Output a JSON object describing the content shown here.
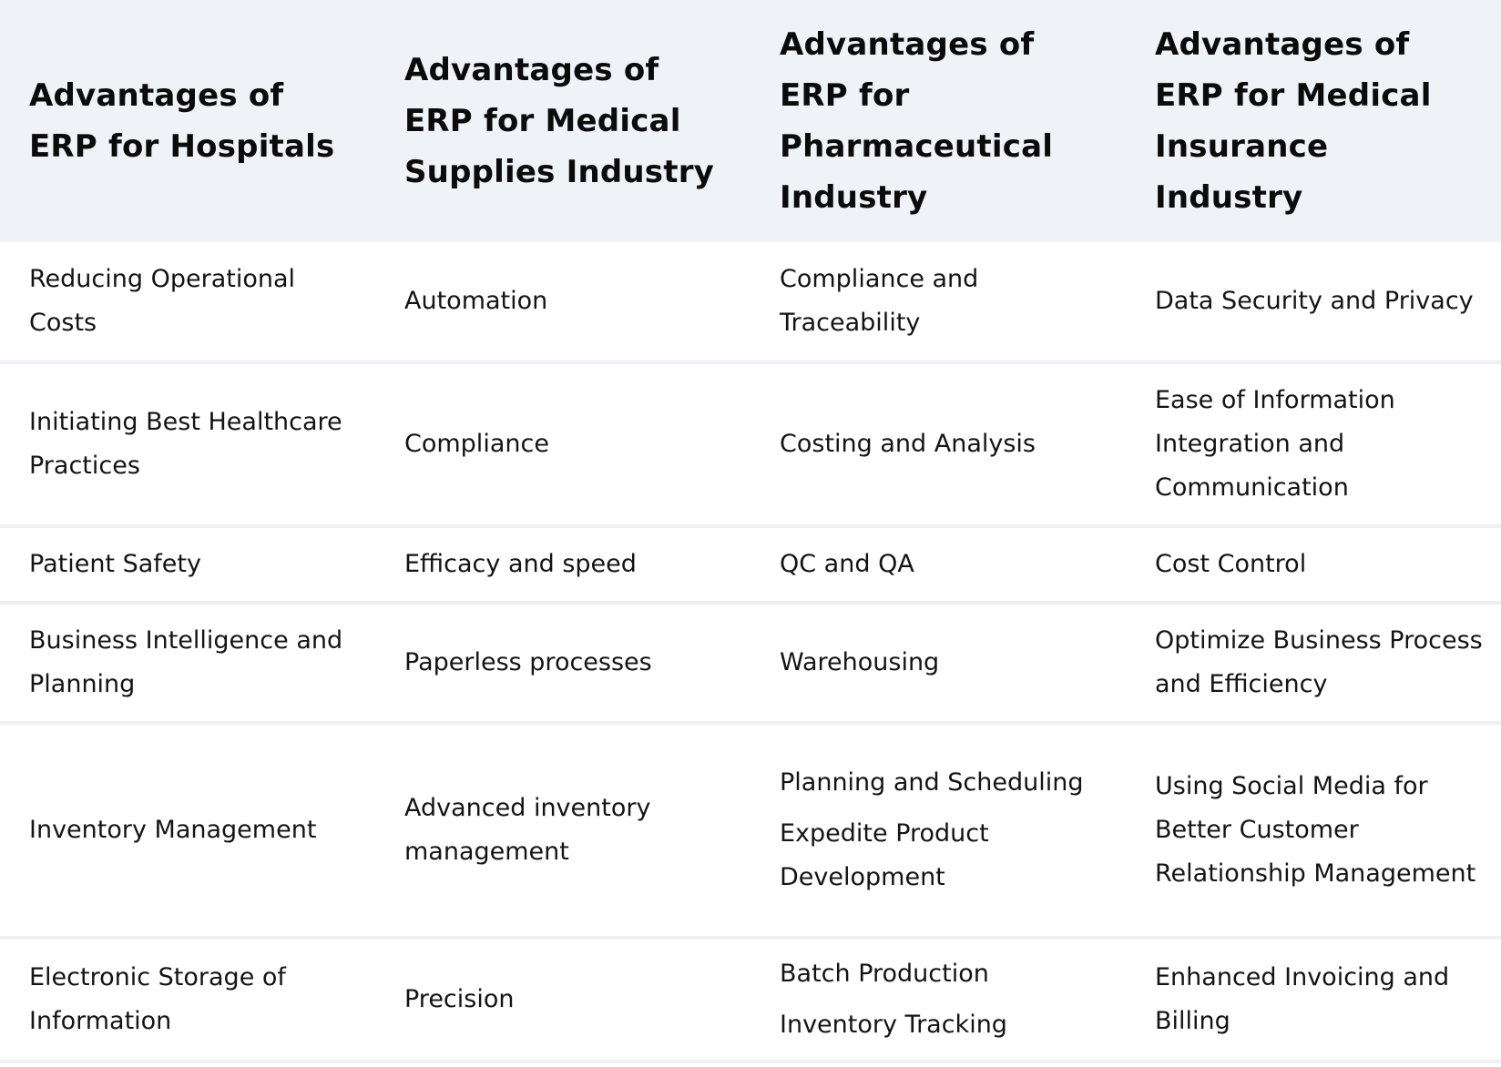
{
  "columns": [
    "Advantages of ERP for Hospitals",
    "Advantages of ERP for Medical Supplies Industry",
    "Advantages of ERP for Pharmaceutical Industry",
    "Advantages of ERP for Medical Insurance Industry"
  ],
  "rows": [
    {
      "hospitals": "Reducing Operational Costs",
      "medical_supplies": "Automation",
      "pharmaceutical": [
        "Compliance and Traceability"
      ],
      "medical_insurance": "Data Security and Privacy"
    },
    {
      "hospitals": "Initiating Best Healthcare Practices",
      "medical_supplies": "Compliance",
      "pharmaceutical": [
        "Costing and Analysis"
      ],
      "medical_insurance": "Ease of Information Integration and Communication"
    },
    {
      "hospitals": "Patient Safety",
      "medical_supplies": "Efficacy and speed",
      "pharmaceutical": [
        "QC and QA"
      ],
      "medical_insurance": "Cost Control"
    },
    {
      "hospitals": "Business Intelligence and Planning",
      "medical_supplies": "Paperless processes",
      "pharmaceutical": [
        "Warehousing"
      ],
      "medical_insurance": "Optimize Business Process and Efficiency"
    },
    {
      "hospitals": "Inventory Management",
      "medical_supplies": "Advanced inventory management",
      "pharmaceutical": [
        "Planning and Scheduling",
        "Expedite Product Development"
      ],
      "medical_insurance": "Using Social Media for Better Customer Relationship Management"
    },
    {
      "hospitals": "Electronic Storage of Information",
      "medical_supplies": "Precision",
      "pharmaceutical": [
        "Batch Production",
        "Inventory Tracking"
      ],
      "medical_insurance": "Enhanced Invoicing and Billing"
    }
  ]
}
